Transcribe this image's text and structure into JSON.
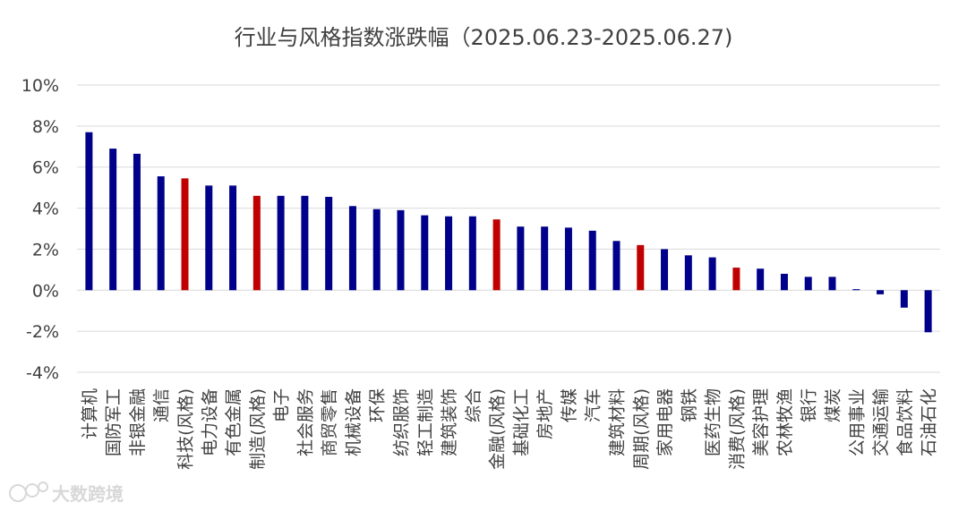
{
  "chart_data": {
    "type": "bar",
    "title": "行业与风格指数涨跌幅（2025.06.23-2025.06.27)",
    "xlabel": "",
    "ylabel": "",
    "ylim": [
      -4,
      10
    ],
    "yticks": [
      -4,
      -2,
      0,
      2,
      4,
      6,
      8,
      10
    ],
    "ytick_labels": [
      "-4%",
      "-2%",
      "0%",
      "2%",
      "4%",
      "6%",
      "8%",
      "10%"
    ],
    "grid": true,
    "legend": "none",
    "colors": {
      "industry": "#00008B",
      "style": "#C00000"
    },
    "categories": [
      "计算机",
      "国防军工",
      "非银金融",
      "通信",
      "科技(风格)",
      "电力设备",
      "有色金属",
      "制造(风格)",
      "电子",
      "社会服务",
      "商贸零售",
      "机械设备",
      "环保",
      "纺织服饰",
      "轻工制造",
      "建筑装饰",
      "综合",
      "金融(风格)",
      "基础化工",
      "房地产",
      "传媒",
      "汽车",
      "建筑材料",
      "周期(风格)",
      "家用电器",
      "钢铁",
      "医药生物",
      "消费(风格)",
      "美容护理",
      "农林牧渔",
      "银行",
      "煤炭",
      "公用事业",
      "交通运输",
      "食品饮料",
      "石油石化"
    ],
    "values": [
      7.7,
      6.9,
      6.65,
      5.55,
      5.45,
      5.1,
      5.1,
      4.6,
      4.6,
      4.6,
      4.55,
      4.1,
      3.95,
      3.9,
      3.65,
      3.6,
      3.6,
      3.45,
      3.1,
      3.1,
      3.05,
      2.9,
      2.4,
      2.2,
      2.0,
      1.7,
      1.6,
      1.1,
      1.05,
      0.8,
      0.65,
      0.65,
      0.05,
      -0.2,
      -0.85,
      -2.05
    ],
    "highlight": [
      false,
      false,
      false,
      false,
      true,
      false,
      false,
      true,
      false,
      false,
      false,
      false,
      false,
      false,
      false,
      false,
      false,
      true,
      false,
      false,
      false,
      false,
      false,
      true,
      false,
      false,
      false,
      true,
      false,
      false,
      false,
      false,
      false,
      false,
      false,
      false
    ]
  },
  "watermark": {
    "icon": "dashu-logo-icon",
    "text": "大数跨境"
  }
}
